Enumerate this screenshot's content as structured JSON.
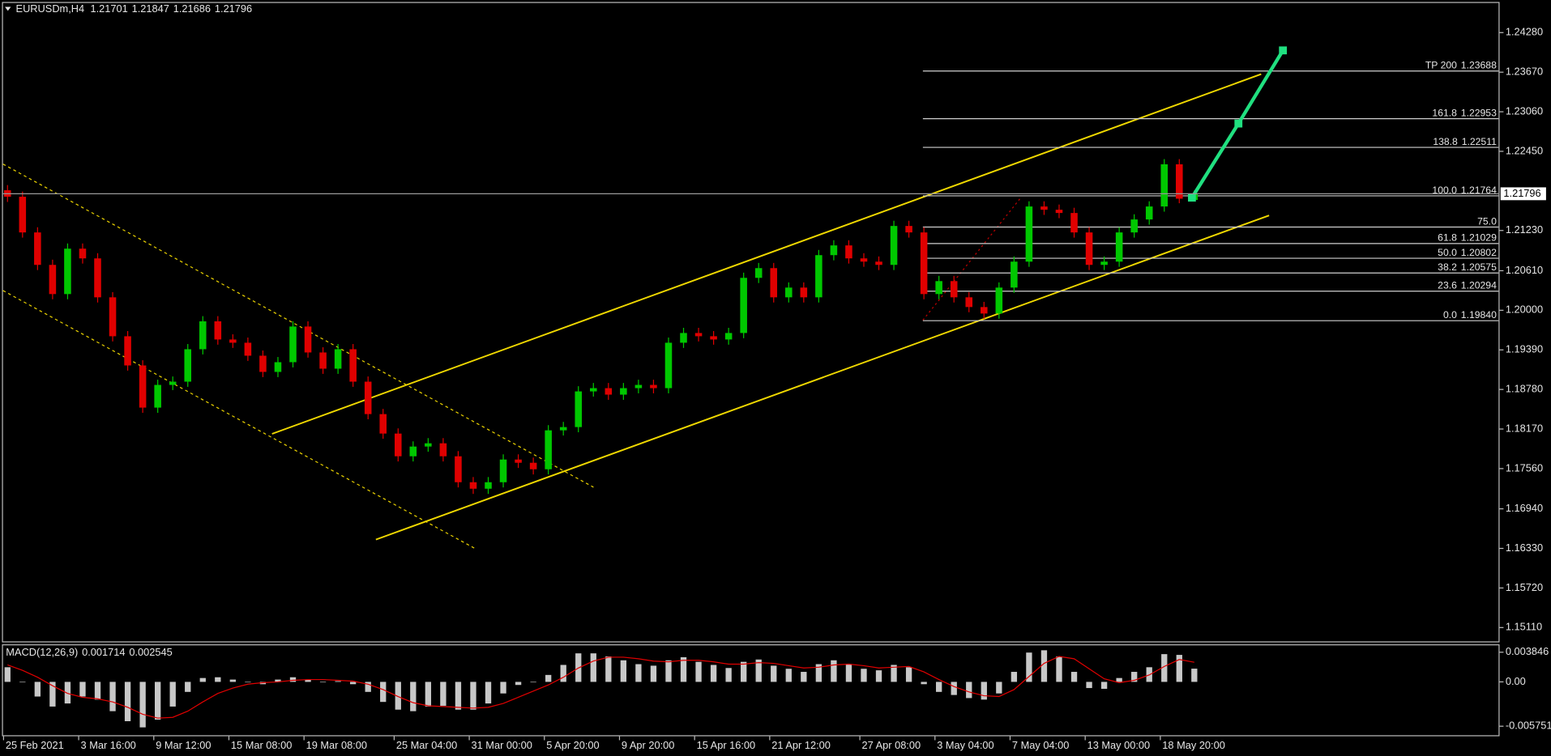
{
  "chart_data": {
    "type": "candlestick",
    "symbol": "EURUSDm,H4",
    "categories": [
      "25 Feb 2021",
      null,
      null,
      null,
      null,
      "3 Mar 16:00",
      null,
      null,
      null,
      null,
      "9 Mar 12:00",
      null,
      null,
      null,
      null,
      "15 Mar 08:00",
      null,
      null,
      null,
      null,
      "19 Mar 08:00",
      null,
      null,
      null,
      null,
      null,
      "25 Mar 04:00",
      null,
      null,
      null,
      null,
      "31 Mar 00:00",
      null,
      null,
      null,
      null,
      "5 Apr 20:00",
      null,
      null,
      null,
      null,
      "9 Apr 20:00",
      null,
      null,
      null,
      null,
      "15 Apr 16:00",
      null,
      null,
      null,
      null,
      "21 Apr 12:00",
      null,
      null,
      null,
      null,
      null,
      "27 Apr 08:00",
      null,
      null,
      null,
      null,
      "3 May 04:00",
      null,
      null,
      null,
      null,
      "7 May 04:00",
      null,
      null,
      null,
      null,
      "13 May 00:00",
      null,
      null,
      null,
      null,
      "18 May 20:00",
      null,
      null
    ],
    "open": [
      1.2185,
      1.2175,
      1.212,
      1.207,
      1.2025,
      1.2095,
      1.208,
      1.202,
      1.196,
      1.1915,
      1.185,
      1.1885,
      1.189,
      1.194,
      1.1983,
      1.1955,
      1.195,
      1.193,
      1.1905,
      1.192,
      1.1975,
      1.1935,
      1.191,
      1.194,
      1.189,
      1.184,
      1.181,
      1.1775,
      1.179,
      1.1795,
      1.1775,
      1.1735,
      1.1725,
      1.1735,
      1.177,
      1.1765,
      1.1755,
      1.1815,
      1.182,
      1.1875,
      1.188,
      1.187,
      1.188,
      1.1885,
      1.188,
      1.195,
      1.1965,
      1.196,
      1.1955,
      1.1965,
      1.205,
      1.2065,
      1.202,
      1.2035,
      1.202,
      1.2085,
      1.21,
      1.208,
      1.2075,
      1.207,
      1.213,
      1.212,
      1.2025,
      1.2045,
      1.202,
      1.2005,
      1.1995,
      1.2035,
      1.2075,
      1.216,
      1.2155,
      1.215,
      1.212,
      1.207,
      1.2075,
      1.212,
      1.214,
      1.216,
      1.2225,
      1.21701
    ],
    "high": [
      1.2193,
      1.2183,
      1.2128,
      1.2078,
      1.2103,
      1.2103,
      1.2088,
      1.2028,
      1.1968,
      1.1923,
      1.1893,
      1.1898,
      1.1948,
      1.1991,
      1.1991,
      1.1963,
      1.1958,
      1.1938,
      1.1928,
      1.1983,
      1.1983,
      1.1943,
      1.1948,
      1.1948,
      1.1898,
      1.1848,
      1.1818,
      1.1798,
      1.1803,
      1.1803,
      1.1783,
      1.1743,
      1.1743,
      1.1778,
      1.1778,
      1.1773,
      1.1823,
      1.1828,
      1.1883,
      1.1888,
      1.1888,
      1.1888,
      1.1893,
      1.1893,
      1.1958,
      1.1973,
      1.1973,
      1.1968,
      1.1973,
      1.2058,
      1.2073,
      1.2073,
      1.2043,
      1.2043,
      1.2093,
      1.2108,
      1.2108,
      1.2088,
      1.2083,
      1.2138,
      1.2138,
      1.2128,
      1.2053,
      1.2053,
      1.2028,
      1.2013,
      1.2043,
      1.2083,
      1.2168,
      1.2168,
      1.2163,
      1.2158,
      1.2128,
      1.2083,
      1.2128,
      1.2148,
      1.2168,
      1.2233,
      1.2233,
      1.21847
    ],
    "low": [
      1.2167,
      1.2112,
      1.2062,
      1.2017,
      1.2017,
      1.2072,
      1.2012,
      1.1952,
      1.1907,
      1.1842,
      1.1842,
      1.1877,
      1.1882,
      1.1932,
      1.1947,
      1.1942,
      1.1922,
      1.1897,
      1.1897,
      1.1912,
      1.1927,
      1.1902,
      1.1902,
      1.1882,
      1.1832,
      1.1802,
      1.1767,
      1.1767,
      1.1782,
      1.1767,
      1.1727,
      1.1717,
      1.1717,
      1.1727,
      1.1757,
      1.1747,
      1.1747,
      1.1807,
      1.1812,
      1.1867,
      1.1862,
      1.1862,
      1.1872,
      1.1872,
      1.1872,
      1.1942,
      1.1952,
      1.1947,
      1.1947,
      1.1957,
      1.2042,
      1.2012,
      1.2012,
      1.2012,
      1.2012,
      1.2077,
      1.2072,
      1.2067,
      1.2062,
      1.2062,
      1.2112,
      1.2017,
      1.2017,
      1.2012,
      1.1997,
      1.1987,
      1.1987,
      1.2027,
      1.2067,
      1.2147,
      1.2142,
      1.2112,
      1.2062,
      1.2062,
      1.2067,
      1.2112,
      1.2132,
      1.2152,
      1.2165,
      1.21686
    ],
    "close": [
      1.2175,
      1.212,
      1.207,
      1.2025,
      1.2095,
      1.208,
      1.202,
      1.196,
      1.1915,
      1.185,
      1.1885,
      1.189,
      1.194,
      1.1983,
      1.1955,
      1.195,
      1.193,
      1.1905,
      1.192,
      1.1975,
      1.1935,
      1.191,
      1.194,
      1.189,
      1.184,
      1.181,
      1.1775,
      1.179,
      1.1795,
      1.1775,
      1.1735,
      1.1725,
      1.1735,
      1.177,
      1.1765,
      1.1755,
      1.1815,
      1.182,
      1.1875,
      1.188,
      1.187,
      1.188,
      1.1885,
      1.188,
      1.195,
      1.1965,
      1.196,
      1.1955,
      1.1965,
      1.205,
      1.2065,
      1.202,
      1.2035,
      1.202,
      1.2085,
      1.21,
      1.208,
      1.2075,
      1.207,
      1.213,
      1.212,
      1.2025,
      1.2045,
      1.202,
      1.2005,
      1.1995,
      1.2035,
      1.2075,
      1.216,
      1.2155,
      1.215,
      1.212,
      1.207,
      1.2075,
      1.212,
      1.214,
      1.216,
      1.2225,
      1.2172,
      1.21796
    ],
    "up_color": "#00c800",
    "down_color": "#e00000",
    "ylim": [
      1.14882,
      1.24752
    ],
    "yticks": [
      {
        "value": 1.2428,
        "label": "1.24280"
      },
      {
        "value": 1.2367,
        "label": "1.23670"
      },
      {
        "value": 1.2306,
        "label": "1.23060"
      },
      {
        "value": 1.2245,
        "label": "1.22450"
      },
      {
        "value": 1.2123,
        "label": "1.21230"
      },
      {
        "value": 1.2061,
        "label": "1.20610"
      },
      {
        "value": 1.2,
        "label": "1.20000"
      },
      {
        "value": 1.1939,
        "label": "1.19390"
      },
      {
        "value": 1.1878,
        "label": "1.18780"
      },
      {
        "value": 1.1817,
        "label": "1.18170"
      },
      {
        "value": 1.1756,
        "label": "1.17560"
      },
      {
        "value": 1.1694,
        "label": "1.16940"
      },
      {
        "value": 1.1633,
        "label": "1.16330"
      },
      {
        "value": 1.1572,
        "label": "1.15720"
      },
      {
        "value": 1.1511,
        "label": "1.15110"
      }
    ],
    "fib_levels": [
      {
        "level": "TP 200",
        "price": 1.23688
      },
      {
        "level": "161.8",
        "price": 1.22953
      },
      {
        "level": "138.8",
        "price": 1.22511
      },
      {
        "level": "100.0",
        "price": 1.21764
      },
      {
        "level": "75.0",
        "line": 1.21283
      },
      {
        "level": "61.8",
        "price": 1.21029
      },
      {
        "level": "50.0",
        "price": 1.20802
      },
      {
        "level": "38.2",
        "price": 1.20575
      },
      {
        "level": "23.6",
        "price": 1.20294
      },
      {
        "level": "0.0",
        "price": {
          "value": 1.1984,
          "label": "1.19840"
        }
      }
    ],
    "macd": {
      "name": "MACD(12,26,9)",
      "histogram_color": "#c8c8c8",
      "signal_color": "#e00000",
      "histogram": [
        0.0019,
        0.0,
        -0.0019,
        -0.0032,
        -0.0028,
        -0.0019,
        -0.0023,
        -0.0038,
        -0.0051,
        -0.0059,
        -0.0049,
        -0.0032,
        -0.0013,
        0.0005,
        0.0006,
        0.0003,
        0.0,
        -0.0003,
        0.0003,
        0.0006,
        0.0003,
        0.0,
        0.0001,
        -0.0003,
        -0.0013,
        -0.0026,
        -0.0036,
        -0.0038,
        -0.0032,
        -0.0031,
        -0.0036,
        -0.0036,
        -0.0028,
        -0.0015,
        -0.0004,
        0.0,
        0.0009,
        0.0022,
        0.0037,
        0.0037,
        0.0033,
        0.0028,
        0.0023,
        0.0021,
        0.0028,
        0.0032,
        0.0026,
        0.0022,
        0.0018,
        0.0026,
        0.0029,
        0.0021,
        0.0017,
        0.0013,
        0.0023,
        0.0028,
        0.0023,
        0.0017,
        0.0015,
        0.0022,
        0.0019,
        -0.0003,
        -0.0013,
        -0.0017,
        -0.0021,
        -0.0023,
        -0.0015,
        0.0013,
        0.0038,
        0.0041,
        0.0033,
        0.0013,
        -0.0008,
        -0.0009,
        0.0005,
        0.0013,
        0.0019,
        0.0036,
        0.0035,
        0.001714
      ],
      "signal": [
        0.0022,
        0.0015,
        0.0006,
        -0.0005,
        -0.0015,
        -0.002,
        -0.0022,
        -0.0026,
        -0.0033,
        -0.0042,
        -0.0047,
        -0.0046,
        -0.0038,
        -0.0026,
        -0.0015,
        -0.0008,
        -0.0003,
        -0.0001,
        0.0,
        0.0002,
        0.0003,
        0.0003,
        0.0002,
        0.0001,
        -0.0003,
        -0.001,
        -0.0019,
        -0.0027,
        -0.0031,
        -0.0032,
        -0.0033,
        -0.0034,
        -0.0033,
        -0.0028,
        -0.002,
        -0.0012,
        -0.0004,
        0.0006,
        0.0018,
        0.0027,
        0.0032,
        0.0032,
        0.003,
        0.0027,
        0.0026,
        0.0028,
        0.0028,
        0.0026,
        0.0023,
        0.0023,
        0.0025,
        0.0024,
        0.0021,
        0.0018,
        0.0019,
        0.0022,
        0.0023,
        0.0021,
        0.0018,
        0.0019,
        0.002,
        0.0013,
        0.0003,
        -0.0006,
        -0.0013,
        -0.0018,
        -0.0019,
        -0.001,
        0.0007,
        0.0024,
        0.0033,
        0.003,
        0.0017,
        0.0004,
        -0.0001,
        0.0002,
        0.0009,
        0.002,
        0.0029,
        0.002545
      ],
      "ylim": [
        -0.00705,
        0.00487
      ],
      "yticks": [
        0.003846,
        {
          "value": 0,
          "label": "0.00"
        },
        -0.005751
      ]
    }
  }
}
